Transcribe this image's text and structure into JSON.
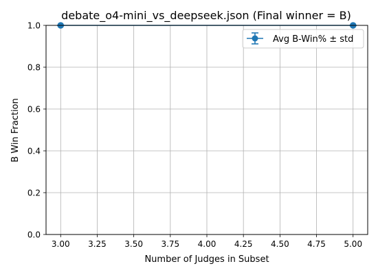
{
  "chart_data": {
    "type": "line",
    "title": "debate_o4-mini_vs_deepseek.json (Final winner = B)",
    "xlabel": "Number of Judges in Subset",
    "ylabel": "B Win Fraction",
    "xlim": [
      2.9,
      5.1
    ],
    "ylim": [
      0.0,
      1.0
    ],
    "xticks": [
      3.0,
      3.25,
      3.5,
      3.75,
      4.0,
      4.25,
      4.5,
      4.75,
      5.0
    ],
    "xtick_labels": [
      "3.00",
      "3.25",
      "3.50",
      "3.75",
      "4.00",
      "4.25",
      "4.50",
      "4.75",
      "5.00"
    ],
    "yticks": [
      0.0,
      0.2,
      0.4,
      0.6,
      0.8,
      1.0
    ],
    "ytick_labels": [
      "0.0",
      "0.2",
      "0.4",
      "0.6",
      "0.8",
      "1.0"
    ],
    "grid": true,
    "legend_position": "upper right",
    "series": [
      {
        "name": "Avg B-Win% ± std",
        "color": "#1f77b4",
        "x": [
          3,
          5
        ],
        "y": [
          1.0,
          1.0
        ],
        "yerr": [
          0.0,
          0.0
        ],
        "marker": "circle"
      }
    ]
  }
}
